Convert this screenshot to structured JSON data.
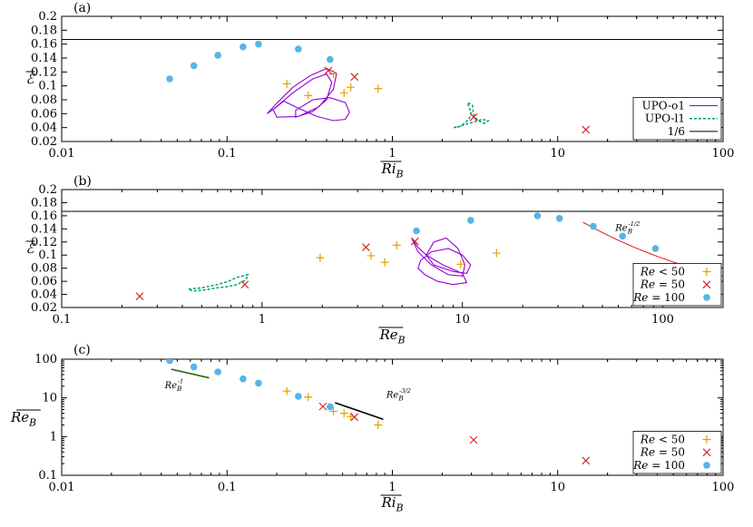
{
  "colors": {
    "upo_o1": "#9400d3",
    "upo_l1": "#009e73",
    "ref_line": "#000000",
    "fit_red": "#e41a1c",
    "fit_green": "#2f6b0f",
    "fit_black": "#000000",
    "re_lt50": "#e69f00",
    "re_50": "#d62728",
    "re_100": "#56b4e9"
  },
  "chart_data": [
    {
      "panel_label": "(a)",
      "type": "scatter",
      "xscale": "log",
      "xlim": [
        0.01,
        100
      ],
      "ylim": [
        0.02,
        0.2
      ],
      "xlabel": "Ri_B",
      "ylabel": "ℰ",
      "xticks": [
        0.01,
        0.1,
        1,
        10,
        100
      ],
      "xtick_labels": [
        "0.01",
        "0.1",
        "1",
        "10",
        "100"
      ],
      "yticks": [
        0.02,
        0.04,
        0.06,
        0.08,
        0.1,
        0.12,
        0.14,
        0.16,
        0.18,
        0.2
      ],
      "ytick_labels": [
        "0.02",
        "0.04",
        "0.06",
        "0.08",
        "0.1",
        "0.12",
        "0.14",
        "0.16",
        "0.18",
        "0.2"
      ],
      "hline": 0.1667,
      "legend_position": "bottom-right",
      "legend": [
        {
          "label": "UPO-o1",
          "style": "upo_o1"
        },
        {
          "label": "UPO-l1",
          "style": "upo_l1"
        },
        {
          "label": "1/6",
          "style": "ref"
        }
      ],
      "series": [
        {
          "key": "lt50",
          "marker": "plus",
          "points": [
            [
              0.23,
              0.103
            ],
            [
              0.31,
              0.086
            ],
            [
              0.44,
              0.117
            ],
            [
              0.51,
              0.09
            ],
            [
              0.56,
              0.098
            ],
            [
              0.82,
              0.096
            ]
          ]
        },
        {
          "key": "eq50",
          "marker": "cross",
          "points": [
            [
              0.41,
              0.122
            ],
            [
              0.59,
              0.113
            ],
            [
              3.1,
              0.055
            ],
            [
              14.8,
              0.037
            ]
          ]
        },
        {
          "key": "eq100",
          "marker": "dot",
          "points": [
            [
              0.045,
              0.11
            ],
            [
              0.063,
              0.129
            ],
            [
              0.088,
              0.144
            ],
            [
              0.125,
              0.156
            ],
            [
              0.155,
              0.16
            ],
            [
              0.27,
              0.153
            ],
            [
              0.42,
              0.138
            ]
          ]
        }
      ],
      "curves": [
        {
          "key": "upo_o1",
          "dash": false,
          "points": [
            [
              0.175,
              0.06
            ],
            [
              0.2,
              0.075
            ],
            [
              0.25,
              0.098
            ],
            [
              0.32,
              0.115
            ],
            [
              0.4,
              0.125
            ],
            [
              0.46,
              0.118
            ],
            [
              0.44,
              0.095
            ],
            [
              0.36,
              0.07
            ],
            [
              0.27,
              0.056
            ],
            [
              0.2,
              0.055
            ],
            [
              0.19,
              0.066
            ],
            [
              0.25,
              0.09
            ],
            [
              0.33,
              0.11
            ],
            [
              0.4,
              0.117
            ],
            [
              0.43,
              0.105
            ],
            [
              0.4,
              0.08
            ],
            [
              0.33,
              0.063
            ],
            [
              0.26,
              0.055
            ],
            [
              0.26,
              0.065
            ],
            [
              0.33,
              0.08
            ],
            [
              0.42,
              0.083
            ],
            [
              0.52,
              0.076
            ],
            [
              0.55,
              0.062
            ],
            [
              0.52,
              0.052
            ],
            [
              0.44,
              0.05
            ],
            [
              0.35,
              0.056
            ],
            [
              0.27,
              0.068
            ],
            [
              0.22,
              0.078
            ],
            [
              0.2,
              0.07
            ],
            [
              0.175,
              0.06
            ]
          ]
        },
        {
          "key": "upo_l1",
          "dash": true,
          "points": [
            [
              2.35,
              0.04
            ],
            [
              2.6,
              0.042
            ],
            [
              2.9,
              0.052
            ],
            [
              3.0,
              0.062
            ],
            [
              2.9,
              0.07
            ],
            [
              2.85,
              0.076
            ],
            [
              3.05,
              0.072
            ],
            [
              3.1,
              0.058
            ],
            [
              3.3,
              0.05
            ],
            [
              3.6,
              0.046
            ],
            [
              3.8,
              0.05
            ],
            [
              3.5,
              0.052
            ],
            [
              3.2,
              0.049
            ],
            [
              2.8,
              0.045
            ],
            [
              2.5,
              0.041
            ],
            [
              2.35,
              0.04
            ]
          ]
        }
      ]
    },
    {
      "panel_label": "(b)",
      "type": "scatter",
      "xscale": "log",
      "xlim": [
        0.1,
        200
      ],
      "ylim": [
        0.02,
        0.2
      ],
      "xlabel": "Re_B",
      "ylabel": "ℰ",
      "xticks": [
        0.1,
        1,
        10,
        100
      ],
      "xtick_labels": [
        "0.1",
        "1",
        "10",
        "100"
      ],
      "yticks": [
        0.02,
        0.04,
        0.06,
        0.08,
        0.1,
        0.12,
        0.14,
        0.16,
        0.18,
        0.2
      ],
      "ytick_labels": [
        "0.02",
        "0.04",
        "0.06",
        "0.08",
        "0.1",
        "0.12",
        "0.14",
        "0.16",
        "0.18",
        "0.2"
      ],
      "hline": 0.1667,
      "legend_position": "bottom-right",
      "legend": [
        {
          "label": "Re < 50",
          "style": "lt50"
        },
        {
          "label": "Re = 50",
          "style": "eq50"
        },
        {
          "label": "Re = 100",
          "style": "eq100"
        }
      ],
      "annotations": [
        {
          "text": "Re_B^{-1/2}",
          "x": 58,
          "y": 0.137
        }
      ],
      "series": [
        {
          "key": "lt50",
          "marker": "plus",
          "points": [
            [
              1.95,
              0.096
            ],
            [
              3.5,
              0.099
            ],
            [
              4.1,
              0.089
            ],
            [
              4.7,
              0.115
            ],
            [
              9.8,
              0.086
            ],
            [
              14.8,
              0.103
            ]
          ]
        },
        {
          "key": "eq50",
          "marker": "cross",
          "points": [
            [
              0.245,
              0.037
            ],
            [
              0.82,
              0.055
            ],
            [
              3.3,
              0.112
            ],
            [
              5.8,
              0.121
            ]
          ]
        },
        {
          "key": "eq100",
          "marker": "dot",
          "points": [
            [
              5.9,
              0.137
            ],
            [
              11.0,
              0.153
            ],
            [
              23.7,
              0.16
            ],
            [
              30.5,
              0.156
            ],
            [
              45.0,
              0.144
            ],
            [
              63.0,
              0.129
            ],
            [
              92.0,
              0.11
            ]
          ]
        }
      ],
      "fit": {
        "key": "fit_red",
        "c": 0.95,
        "power": -0.5,
        "x_range": [
          40,
          200
        ]
      },
      "curves": [
        {
          "key": "upo_o1",
          "dash": false,
          "points": [
            [
              5.6,
              0.125
            ],
            [
              6.0,
              0.105
            ],
            [
              7.0,
              0.085
            ],
            [
              8.5,
              0.07
            ],
            [
              10.0,
              0.068
            ],
            [
              10.3,
              0.085
            ],
            [
              9.5,
              0.11
            ],
            [
              8.3,
              0.126
            ],
            [
              7.2,
              0.12
            ],
            [
              6.6,
              0.1
            ],
            [
              7.2,
              0.085
            ],
            [
              9.0,
              0.075
            ],
            [
              10.5,
              0.072
            ],
            [
              11.0,
              0.085
            ],
            [
              10.0,
              0.1
            ],
            [
              8.5,
              0.11
            ],
            [
              7.0,
              0.105
            ],
            [
              6.2,
              0.092
            ],
            [
              6.0,
              0.08
            ],
            [
              6.5,
              0.07
            ],
            [
              7.5,
              0.06
            ],
            [
              9.0,
              0.055
            ],
            [
              10.5,
              0.058
            ],
            [
              10.0,
              0.072
            ],
            [
              8.0,
              0.085
            ],
            [
              6.6,
              0.1
            ],
            [
              6.0,
              0.112
            ],
            [
              5.6,
              0.125
            ]
          ]
        },
        {
          "key": "upo_l1",
          "dash": true,
          "points": [
            [
              0.43,
              0.048
            ],
            [
              0.5,
              0.05
            ],
            [
              0.6,
              0.055
            ],
            [
              0.68,
              0.06
            ],
            [
              0.75,
              0.066
            ],
            [
              0.85,
              0.07
            ],
            [
              0.83,
              0.062
            ],
            [
              0.75,
              0.055
            ],
            [
              0.68,
              0.052
            ],
            [
              0.6,
              0.05
            ],
            [
              0.52,
              0.047
            ],
            [
              0.45,
              0.045
            ],
            [
              0.43,
              0.048
            ]
          ]
        }
      ]
    },
    {
      "panel_label": "(c)",
      "type": "scatter",
      "xscale": "log",
      "yscale": "log",
      "xlim": [
        0.01,
        100
      ],
      "ylim": [
        0.1,
        100
      ],
      "xlabel": "Ri_B",
      "ylabel": "Re_B",
      "xticks": [
        0.01,
        0.1,
        1,
        10,
        100
      ],
      "xtick_labels": [
        "0.01",
        "0.1",
        "1",
        "10",
        "100"
      ],
      "yticks": [
        0.1,
        1,
        10,
        100
      ],
      "ytick_labels": [
        "0.1",
        "1",
        "10",
        "100"
      ],
      "legend_position": "bottom-right",
      "legend": [
        {
          "label": "Re < 50",
          "style": "lt50"
        },
        {
          "label": "Re = 50",
          "style": "eq50"
        },
        {
          "label": "Re = 100",
          "style": "eq100"
        }
      ],
      "annotations": [
        {
          "text": "Re_B^{-1}",
          "x": 0.042,
          "y": 18
        },
        {
          "text": "Re_B^{-3/2}",
          "x": 0.92,
          "y": 10
        }
      ],
      "series": [
        {
          "key": "lt50",
          "marker": "plus",
          "points": [
            [
              0.23,
              15
            ],
            [
              0.31,
              10.5
            ],
            [
              0.44,
              4.5
            ],
            [
              0.51,
              4.0
            ],
            [
              0.56,
              3.3
            ],
            [
              0.82,
              2.0
            ]
          ]
        },
        {
          "key": "eq50",
          "marker": "cross",
          "points": [
            [
              0.38,
              6.0
            ],
            [
              0.59,
              3.2
            ],
            [
              3.1,
              0.82
            ],
            [
              14.8,
              0.24
            ]
          ]
        },
        {
          "key": "eq100",
          "marker": "dot",
          "points": [
            [
              0.045,
              92
            ],
            [
              0.063,
              63
            ],
            [
              0.088,
              47
            ],
            [
              0.125,
              31
            ],
            [
              0.155,
              24
            ],
            [
              0.27,
              11
            ],
            [
              0.42,
              5.9
            ]
          ]
        }
      ],
      "lines": [
        {
          "key": "fit_green",
          "points": [
            [
              0.046,
              55
            ],
            [
              0.078,
              33
            ]
          ]
        },
        {
          "key": "fit_black",
          "points": [
            [
              0.45,
              7.5
            ],
            [
              0.88,
              2.8
            ]
          ]
        }
      ]
    }
  ]
}
